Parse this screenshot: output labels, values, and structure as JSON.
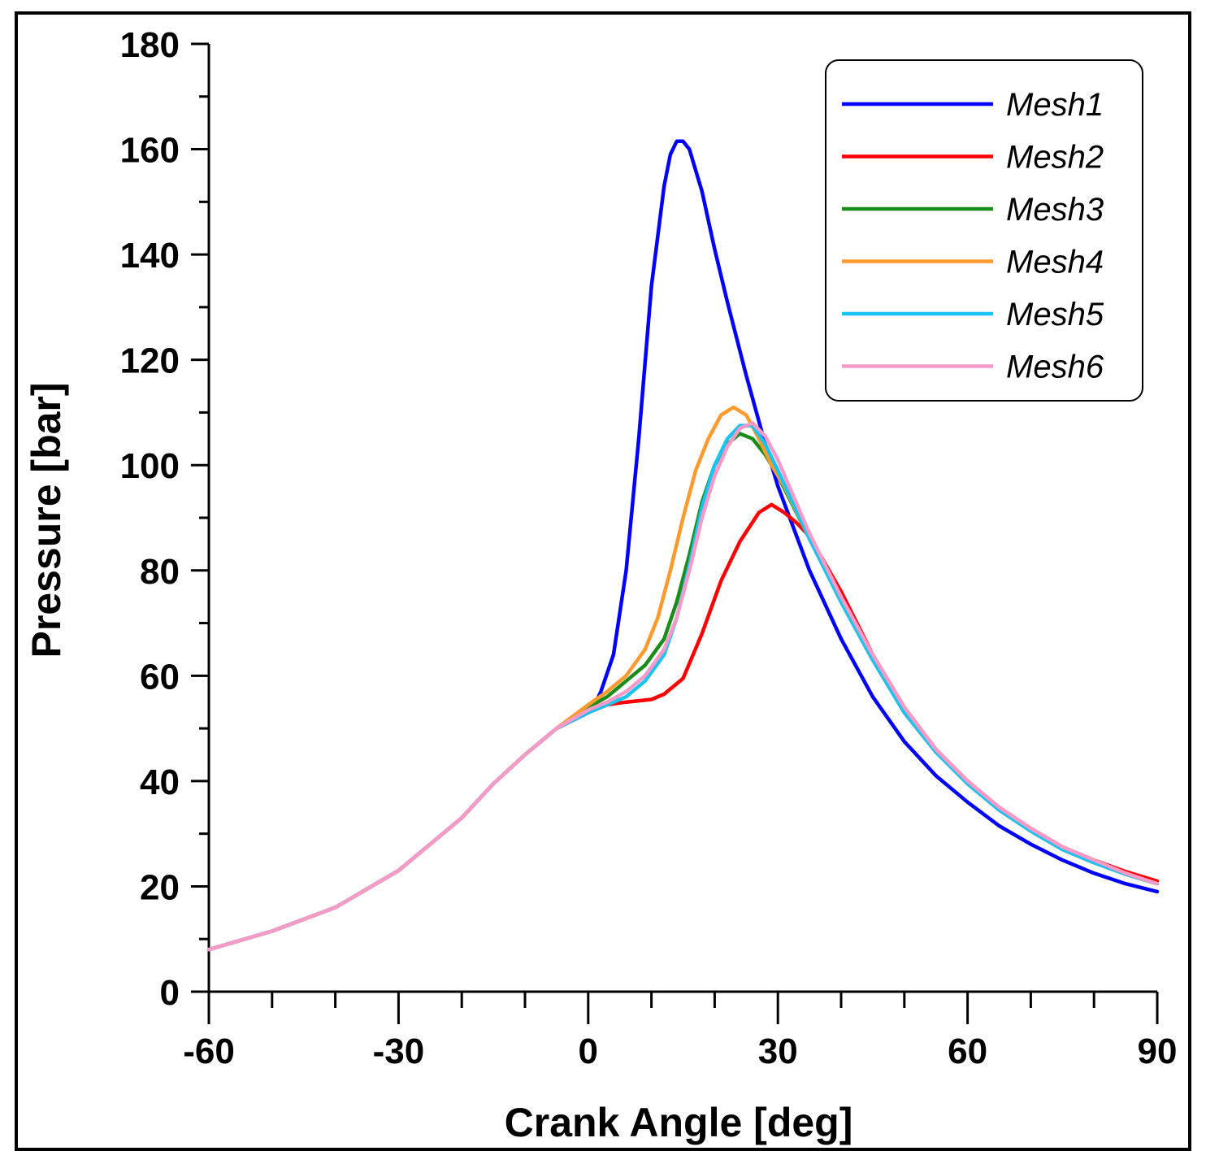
{
  "chart_data": {
    "type": "line",
    "title": "",
    "xlabel": "Crank Angle [deg]",
    "ylabel": "Pressure [bar]",
    "xlim": [
      -60,
      90
    ],
    "ylim": [
      0,
      180
    ],
    "x_major_ticks": [
      -60,
      -30,
      0,
      30,
      60,
      90
    ],
    "x_minor_step": 10,
    "y_major_ticks": [
      0,
      20,
      40,
      60,
      80,
      100,
      120,
      140,
      160,
      180
    ],
    "y_minor_step": 10,
    "legend_position": "top-right",
    "series": [
      {
        "name": "Mesh1",
        "color": "#0000ff",
        "points": [
          [
            -60,
            8
          ],
          [
            -50,
            11.5
          ],
          [
            -40,
            16
          ],
          [
            -30,
            23
          ],
          [
            -20,
            33
          ],
          [
            -15,
            39.5
          ],
          [
            -10,
            45
          ],
          [
            -5,
            50
          ],
          [
            0,
            53
          ],
          [
            1,
            54.5
          ],
          [
            2,
            57
          ],
          [
            4,
            64
          ],
          [
            6,
            80
          ],
          [
            8,
            105
          ],
          [
            10,
            134
          ],
          [
            12,
            153
          ],
          [
            13,
            159
          ],
          [
            14,
            161.5
          ],
          [
            15,
            161.5
          ],
          [
            16,
            160
          ],
          [
            18,
            152
          ],
          [
            20,
            141
          ],
          [
            22,
            131
          ],
          [
            25,
            117
          ],
          [
            28,
            104
          ],
          [
            30,
            96
          ],
          [
            35,
            80
          ],
          [
            40,
            67
          ],
          [
            45,
            56
          ],
          [
            50,
            47.5
          ],
          [
            55,
            41
          ],
          [
            60,
            36
          ],
          [
            65,
            31.5
          ],
          [
            70,
            28
          ],
          [
            75,
            25
          ],
          [
            80,
            22.5
          ],
          [
            85,
            20.5
          ],
          [
            90,
            19
          ]
        ]
      },
      {
        "name": "Mesh2",
        "color": "#ff0000",
        "points": [
          [
            -60,
            8
          ],
          [
            -50,
            11.5
          ],
          [
            -40,
            16
          ],
          [
            -30,
            23
          ],
          [
            -20,
            33
          ],
          [
            -15,
            39.5
          ],
          [
            -10,
            45
          ],
          [
            -5,
            50
          ],
          [
            0,
            53
          ],
          [
            3,
            54.5
          ],
          [
            6,
            55
          ],
          [
            10,
            55.5
          ],
          [
            12,
            56.5
          ],
          [
            15,
            59.5
          ],
          [
            18,
            68
          ],
          [
            21,
            78
          ],
          [
            24,
            85.5
          ],
          [
            27,
            91
          ],
          [
            29,
            92.5
          ],
          [
            31,
            91
          ],
          [
            33,
            89
          ],
          [
            35,
            86.5
          ],
          [
            40,
            76
          ],
          [
            45,
            64
          ],
          [
            50,
            54
          ],
          [
            55,
            46
          ],
          [
            60,
            40
          ],
          [
            65,
            35
          ],
          [
            70,
            31
          ],
          [
            75,
            27.5
          ],
          [
            80,
            25
          ],
          [
            85,
            22.8
          ],
          [
            90,
            21
          ]
        ]
      },
      {
        "name": "Mesh3",
        "color": "#1a8c1a",
        "points": [
          [
            -60,
            8
          ],
          [
            -50,
            11.5
          ],
          [
            -40,
            16
          ],
          [
            -30,
            23
          ],
          [
            -20,
            33
          ],
          [
            -15,
            39.5
          ],
          [
            -10,
            45
          ],
          [
            -5,
            50
          ],
          [
            0,
            54
          ],
          [
            3,
            56
          ],
          [
            6,
            59
          ],
          [
            9,
            62
          ],
          [
            12,
            67
          ],
          [
            14,
            74
          ],
          [
            16,
            83
          ],
          [
            18,
            93
          ],
          [
            20,
            100
          ],
          [
            22,
            104
          ],
          [
            24,
            106
          ],
          [
            26,
            105
          ],
          [
            28,
            102
          ],
          [
            30,
            98
          ],
          [
            35,
            86
          ],
          [
            40,
            74
          ],
          [
            45,
            63
          ],
          [
            50,
            53
          ],
          [
            55,
            45.5
          ],
          [
            60,
            39.5
          ],
          [
            65,
            34.5
          ],
          [
            70,
            30.5
          ],
          [
            75,
            27
          ],
          [
            80,
            24.5
          ],
          [
            85,
            22.3
          ],
          [
            90,
            20.5
          ]
        ]
      },
      {
        "name": "Mesh4",
        "color": "#ff9a2e",
        "points": [
          [
            -60,
            8
          ],
          [
            -50,
            11.5
          ],
          [
            -40,
            16
          ],
          [
            -30,
            23
          ],
          [
            -20,
            33
          ],
          [
            -15,
            39.5
          ],
          [
            -10,
            45
          ],
          [
            -5,
            50
          ],
          [
            0,
            54.5
          ],
          [
            3,
            57
          ],
          [
            6,
            60
          ],
          [
            9,
            65
          ],
          [
            11,
            71
          ],
          [
            13,
            80
          ],
          [
            15,
            90
          ],
          [
            17,
            99
          ],
          [
            19,
            105
          ],
          [
            21,
            109.5
          ],
          [
            23,
            111
          ],
          [
            25,
            109.5
          ],
          [
            27,
            105
          ],
          [
            29,
            100
          ],
          [
            31,
            96
          ],
          [
            35,
            86
          ],
          [
            40,
            74
          ],
          [
            45,
            63
          ],
          [
            50,
            53
          ],
          [
            55,
            45.5
          ],
          [
            60,
            39.5
          ],
          [
            65,
            34.5
          ],
          [
            70,
            30.5
          ],
          [
            75,
            27
          ],
          [
            80,
            24.5
          ],
          [
            85,
            22.3
          ],
          [
            90,
            20.5
          ]
        ]
      },
      {
        "name": "Mesh5",
        "color": "#19c3f2",
        "points": [
          [
            -60,
            8
          ],
          [
            -50,
            11.5
          ],
          [
            -40,
            16
          ],
          [
            -30,
            23
          ],
          [
            -20,
            33
          ],
          [
            -15,
            39.5
          ],
          [
            -10,
            45
          ],
          [
            -5,
            50
          ],
          [
            0,
            53
          ],
          [
            3,
            54.5
          ],
          [
            6,
            56
          ],
          [
            9,
            59
          ],
          [
            12,
            64
          ],
          [
            14,
            71
          ],
          [
            16,
            81
          ],
          [
            18,
            92
          ],
          [
            20,
            100
          ],
          [
            22,
            105
          ],
          [
            24,
            107.5
          ],
          [
            26,
            107.5
          ],
          [
            28,
            104
          ],
          [
            30,
            99
          ],
          [
            35,
            86
          ],
          [
            40,
            74
          ],
          [
            45,
            63
          ],
          [
            50,
            53
          ],
          [
            55,
            45.5
          ],
          [
            60,
            39.5
          ],
          [
            65,
            34.5
          ],
          [
            70,
            30.5
          ],
          [
            75,
            27
          ],
          [
            80,
            24.5
          ],
          [
            85,
            22.3
          ],
          [
            90,
            20.5
          ]
        ]
      },
      {
        "name": "Mesh6",
        "color": "#f89ac8",
        "points": [
          [
            -60,
            8
          ],
          [
            -50,
            11.5
          ],
          [
            -40,
            16
          ],
          [
            -30,
            23
          ],
          [
            -20,
            33
          ],
          [
            -15,
            39.5
          ],
          [
            -10,
            45
          ],
          [
            -5,
            50
          ],
          [
            0,
            53.5
          ],
          [
            3,
            55
          ],
          [
            6,
            57
          ],
          [
            9,
            60
          ],
          [
            12,
            65
          ],
          [
            14,
            71
          ],
          [
            16,
            80
          ],
          [
            18,
            90
          ],
          [
            20,
            98
          ],
          [
            22,
            103.5
          ],
          [
            24,
            107
          ],
          [
            26,
            108
          ],
          [
            28,
            105.5
          ],
          [
            30,
            101
          ],
          [
            35,
            87
          ],
          [
            40,
            75
          ],
          [
            45,
            64
          ],
          [
            50,
            54
          ],
          [
            55,
            46
          ],
          [
            60,
            40
          ],
          [
            65,
            35
          ],
          [
            70,
            31
          ],
          [
            75,
            27.5
          ],
          [
            80,
            25
          ],
          [
            85,
            22.5
          ],
          [
            90,
            20.5
          ]
        ]
      }
    ]
  }
}
